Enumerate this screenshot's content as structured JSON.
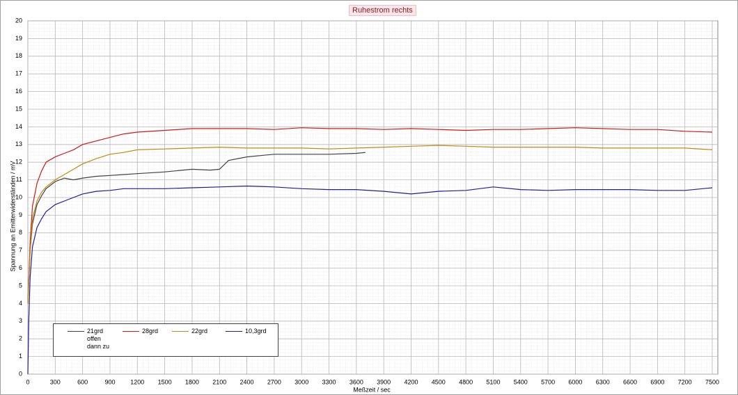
{
  "chart_data": {
    "type": "line",
    "title": "Ruhestrom rechts",
    "xlabel": "Meßzeit  / sec",
    "ylabel": "Spannung an Emitterwiderständen / mV",
    "xlim": [
      0,
      7500
    ],
    "xticks": [
      0,
      300,
      600,
      900,
      1200,
      1500,
      1800,
      2100,
      2400,
      2700,
      3000,
      3300,
      3600,
      3900,
      4200,
      4500,
      4800,
      5100,
      5400,
      5700,
      6000,
      6300,
      6600,
      6900,
      7200,
      7500
    ],
    "ylim": [
      0,
      20
    ],
    "yticks": [
      0,
      1,
      2,
      3,
      4,
      5,
      6,
      7,
      8,
      9,
      10,
      11,
      12,
      13,
      14,
      15,
      16,
      17,
      18,
      19,
      20
    ],
    "grid": true,
    "series": [
      {
        "name": "21grd offen dann zu",
        "color": "#404040",
        "x": [
          0,
          25,
          50,
          100,
          150,
          200,
          300,
          400,
          500,
          600,
          750,
          900,
          1050,
          1200,
          1500,
          1800,
          2000,
          2100,
          2200,
          2400,
          2700,
          3000,
          3300,
          3600,
          3700
        ],
        "values": [
          4,
          7,
          8.5,
          9.6,
          10.1,
          10.5,
          10.9,
          11.1,
          11,
          11.1,
          11.2,
          11.25,
          11.3,
          11.35,
          11.45,
          11.6,
          11.55,
          11.6,
          12.1,
          12.3,
          12.45,
          12.45,
          12.45,
          12.5,
          12.55
        ]
      },
      {
        "name": "28grd",
        "color": "#d01818",
        "x": [
          0,
          25,
          50,
          100,
          150,
          200,
          300,
          400,
          500,
          600,
          750,
          900,
          1050,
          1200,
          1500,
          1800,
          2100,
          2400,
          2700,
          3000,
          3300,
          3600,
          3900,
          4200,
          4500,
          4800,
          5100,
          5400,
          5700,
          6000,
          6300,
          6600,
          6900,
          7200,
          7500
        ],
        "values": [
          4,
          7.5,
          9.5,
          10.8,
          11.5,
          12,
          12.3,
          12.5,
          12.7,
          13,
          13.2,
          13.4,
          13.6,
          13.7,
          13.8,
          13.9,
          13.9,
          13.9,
          13.85,
          13.95,
          13.9,
          13.9,
          13.85,
          13.9,
          13.85,
          13.8,
          13.85,
          13.85,
          13.9,
          13.95,
          13.9,
          13.85,
          13.85,
          13.75,
          13.7
        ]
      },
      {
        "name": "22grd",
        "color": "#c08a10",
        "x": [
          0,
          25,
          50,
          100,
          150,
          200,
          300,
          400,
          500,
          600,
          750,
          900,
          1050,
          1200,
          1500,
          1800,
          2100,
          2400,
          2700,
          3000,
          3300,
          3600,
          3900,
          4200,
          4500,
          4800,
          5100,
          5400,
          5700,
          6000,
          6300,
          6600,
          6900,
          7200,
          7500
        ],
        "values": [
          4,
          7,
          8.8,
          9.8,
          10.3,
          10.6,
          11,
          11.3,
          11.6,
          11.9,
          12.2,
          12.45,
          12.55,
          12.7,
          12.75,
          12.8,
          12.85,
          12.8,
          12.8,
          12.8,
          12.75,
          12.8,
          12.85,
          12.9,
          12.95,
          12.9,
          12.85,
          12.85,
          12.85,
          12.85,
          12.8,
          12.8,
          12.8,
          12.8,
          12.7
        ]
      },
      {
        "name": "10,3grd",
        "color": "#1c1ca0",
        "x": [
          0,
          10,
          25,
          50,
          100,
          150,
          200,
          300,
          450,
          600,
          750,
          900,
          1050,
          1200,
          1500,
          1800,
          2100,
          2400,
          2700,
          3000,
          3300,
          3600,
          3900,
          4200,
          4500,
          4800,
          5100,
          5400,
          5700,
          6000,
          6300,
          6600,
          6900,
          7200,
          7500
        ],
        "values": [
          0,
          3,
          5.5,
          7.2,
          8.3,
          8.8,
          9.2,
          9.6,
          9.9,
          10.2,
          10.35,
          10.4,
          10.5,
          10.5,
          10.5,
          10.55,
          10.6,
          10.65,
          10.6,
          10.5,
          10.45,
          10.45,
          10.35,
          10.2,
          10.35,
          10.4,
          10.6,
          10.45,
          10.4,
          10.45,
          10.45,
          10.45,
          10.4,
          10.4,
          10.55
        ]
      }
    ]
  }
}
